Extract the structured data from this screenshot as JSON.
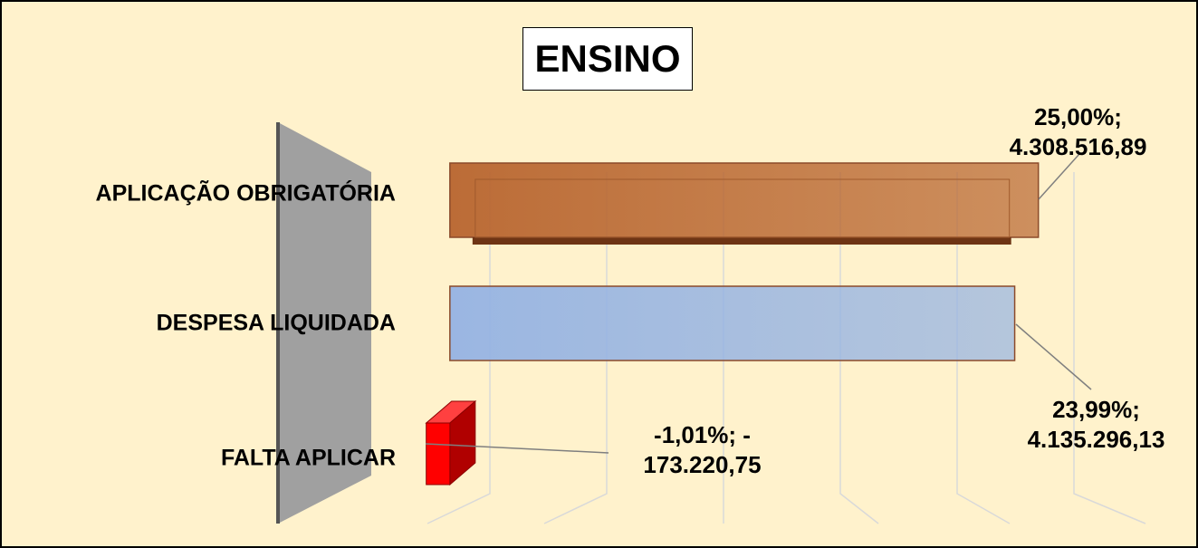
{
  "chart_data": {
    "type": "bar3d",
    "title": "ENSINO",
    "categories": [
      "APLICAÇÃO OBRIGATÓRIA",
      "DESPESA LIQUIDADA",
      "FALTA APLICAR"
    ],
    "values": [
      4308516.89,
      4135296.13,
      -173220.75
    ],
    "value_labels": [
      "25,00%; 4.308.516,89",
      "23,99%; 4.135.296,13",
      "-1,01%; - 173.220,75"
    ],
    "colors": [
      "#b8652f",
      "#95b3e3",
      "#ff0000"
    ],
    "xlim": [
      -1000000,
      5000000
    ]
  }
}
